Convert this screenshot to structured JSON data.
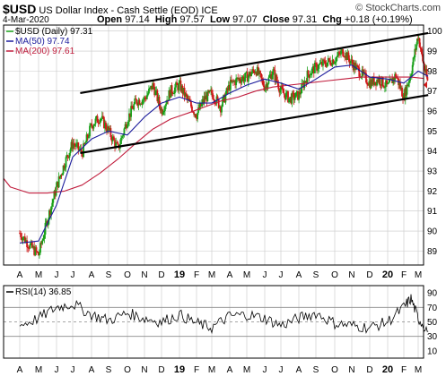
{
  "header": {
    "ticker": "$USD",
    "name": "US Dollar Index - Cash Settle (EOD)",
    "exchange": "ICE",
    "date": "4-Mar-2020",
    "open_label": "Open",
    "open": "97.14",
    "high_label": "High",
    "high": "97.57",
    "low_label": "Low",
    "low": "97.07",
    "close_label": "Close",
    "close": "97.31",
    "chg_label": "Chg",
    "chg": "+0.18 (+0.19%)",
    "brand": "© StockCharts.com"
  },
  "colors": {
    "up": "#18a018",
    "down": "#d01818",
    "ma50": "#1c1c9c",
    "ma200": "#c01c3c",
    "rsi": "#000000",
    "grid": "#c8c8c8",
    "frame": "#000000",
    "channel": "#000000",
    "rsi_band": "#888888"
  },
  "chart_data": [
    {
      "type": "candlestick",
      "legend": [
        "$USD (Daily) 97.31",
        "MA(50) 97.74",
        "MA(200) 97.61"
      ],
      "legend_position": "top-left",
      "x_ticks": [
        "A",
        "M",
        "J",
        "J",
        "A",
        "S",
        "O",
        "N",
        "D",
        "19",
        "F",
        "M",
        "A",
        "M",
        "J",
        "J",
        "A",
        "S",
        "O",
        "N",
        "D",
        "20",
        "F",
        "M"
      ],
      "x_bold": [
        "19",
        "20"
      ],
      "y_ticks": [
        89,
        90,
        91,
        92,
        93,
        94,
        95,
        96,
        97,
        98,
        99,
        100
      ],
      "ylim": [
        88.3,
        100.3
      ],
      "grid": true,
      "y_axis_side": "right",
      "last_value": 97.31,
      "series": [
        {
          "name": "$USD (Daily)",
          "x": [
            0,
            0.5,
            1,
            1.5,
            2,
            2.5,
            3,
            3.5,
            4,
            4.5,
            5,
            5.5,
            6,
            6.5,
            7,
            7.5,
            8,
            8.5,
            9,
            9.5,
            10,
            10.5,
            11,
            11.5,
            12,
            12.5,
            13,
            13.5,
            14,
            14.5,
            15,
            15.5,
            16,
            16.5,
            17,
            17.5,
            18,
            18.5,
            19,
            19.5,
            20,
            20.5,
            21,
            21.5,
            22,
            22.5,
            23,
            23.3,
            23.7
          ],
          "values": [
            89.9,
            89.3,
            88.8,
            90.6,
            92.2,
            93.4,
            94.4,
            93.9,
            95.3,
            95.7,
            95.0,
            94.1,
            95.6,
            96.5,
            96.6,
            97.3,
            96.0,
            97.0,
            97.3,
            96.5,
            95.8,
            96.6,
            96.9,
            96.2,
            97.3,
            97.6,
            97.7,
            98.1,
            97.2,
            98.0,
            97.0,
            96.6,
            96.8,
            97.8,
            98.2,
            98.4,
            98.6,
            99.0,
            98.4,
            97.9,
            97.4,
            97.6,
            97.2,
            97.8,
            96.7,
            97.9,
            99.8,
            98.6,
            97.31
          ]
        },
        {
          "name": "MA(50)",
          "x": [
            0,
            1,
            2,
            3,
            4,
            5,
            6,
            7,
            8,
            9,
            10,
            11,
            12,
            13,
            14,
            15,
            16,
            17,
            18,
            19,
            20,
            21,
            22,
            23,
            23.7
          ],
          "values": [
            89.4,
            89.5,
            91.3,
            93.7,
            94.6,
            95.0,
            94.8,
            95.7,
            96.4,
            96.7,
            96.4,
            96.4,
            96.9,
            97.3,
            97.6,
            97.4,
            97.1,
            97.6,
            98.2,
            98.3,
            97.7,
            97.6,
            97.4,
            98.0,
            97.74
          ]
        },
        {
          "name": "MA(200)",
          "x": [
            -1.5,
            -0.5,
            0.5,
            1.5,
            2.5,
            3.5,
            4.5,
            5.5,
            6.5,
            7.5,
            8.5,
            9.5,
            10.5,
            11.5,
            12.5,
            13.5,
            14.5,
            15.5,
            16.5,
            17.5,
            18.5,
            19.5,
            20.5,
            21.5,
            22.5,
            23.7
          ],
          "values": [
            93.4,
            92.2,
            91.9,
            91.9,
            92.0,
            92.3,
            92.9,
            93.6,
            94.4,
            95.1,
            95.6,
            95.9,
            96.2,
            96.5,
            96.7,
            97.0,
            97.2,
            97.3,
            97.4,
            97.5,
            97.6,
            97.7,
            97.7,
            97.7,
            97.7,
            97.61
          ]
        },
        {
          "name": "channel-upper",
          "x": [
            3.4,
            23.7
          ],
          "values": [
            96.9,
            99.9
          ]
        },
        {
          "name": "channel-lower",
          "x": [
            3.4,
            23.7
          ],
          "values": [
            93.9,
            96.8
          ]
        }
      ]
    },
    {
      "type": "line",
      "legend": [
        "RSI(14) 36.85"
      ],
      "x_ticks": [
        "A",
        "M",
        "J",
        "J",
        "A",
        "S",
        "O",
        "N",
        "D",
        "19",
        "F",
        "M",
        "A",
        "M",
        "J",
        "J",
        "A",
        "S",
        "O",
        "N",
        "D",
        "20",
        "F",
        "M"
      ],
      "y_ticks": [
        10,
        30,
        50,
        70,
        90
      ],
      "ylim": [
        0,
        100
      ],
      "bands": [
        30,
        70
      ],
      "midline": 50,
      "series": [
        {
          "name": "RSI(14)",
          "x": [
            0,
            1,
            2,
            3,
            4,
            5,
            6,
            7,
            8,
            9,
            10,
            11,
            12,
            13,
            14,
            15,
            16,
            17,
            18,
            19,
            20,
            21,
            22,
            22.5,
            23,
            23.7
          ],
          "values": [
            45,
            55,
            70,
            75,
            60,
            52,
            62,
            55,
            50,
            60,
            48,
            42,
            58,
            60,
            55,
            45,
            55,
            62,
            48,
            45,
            42,
            50,
            70,
            82,
            55,
            36.85
          ]
        }
      ]
    }
  ]
}
